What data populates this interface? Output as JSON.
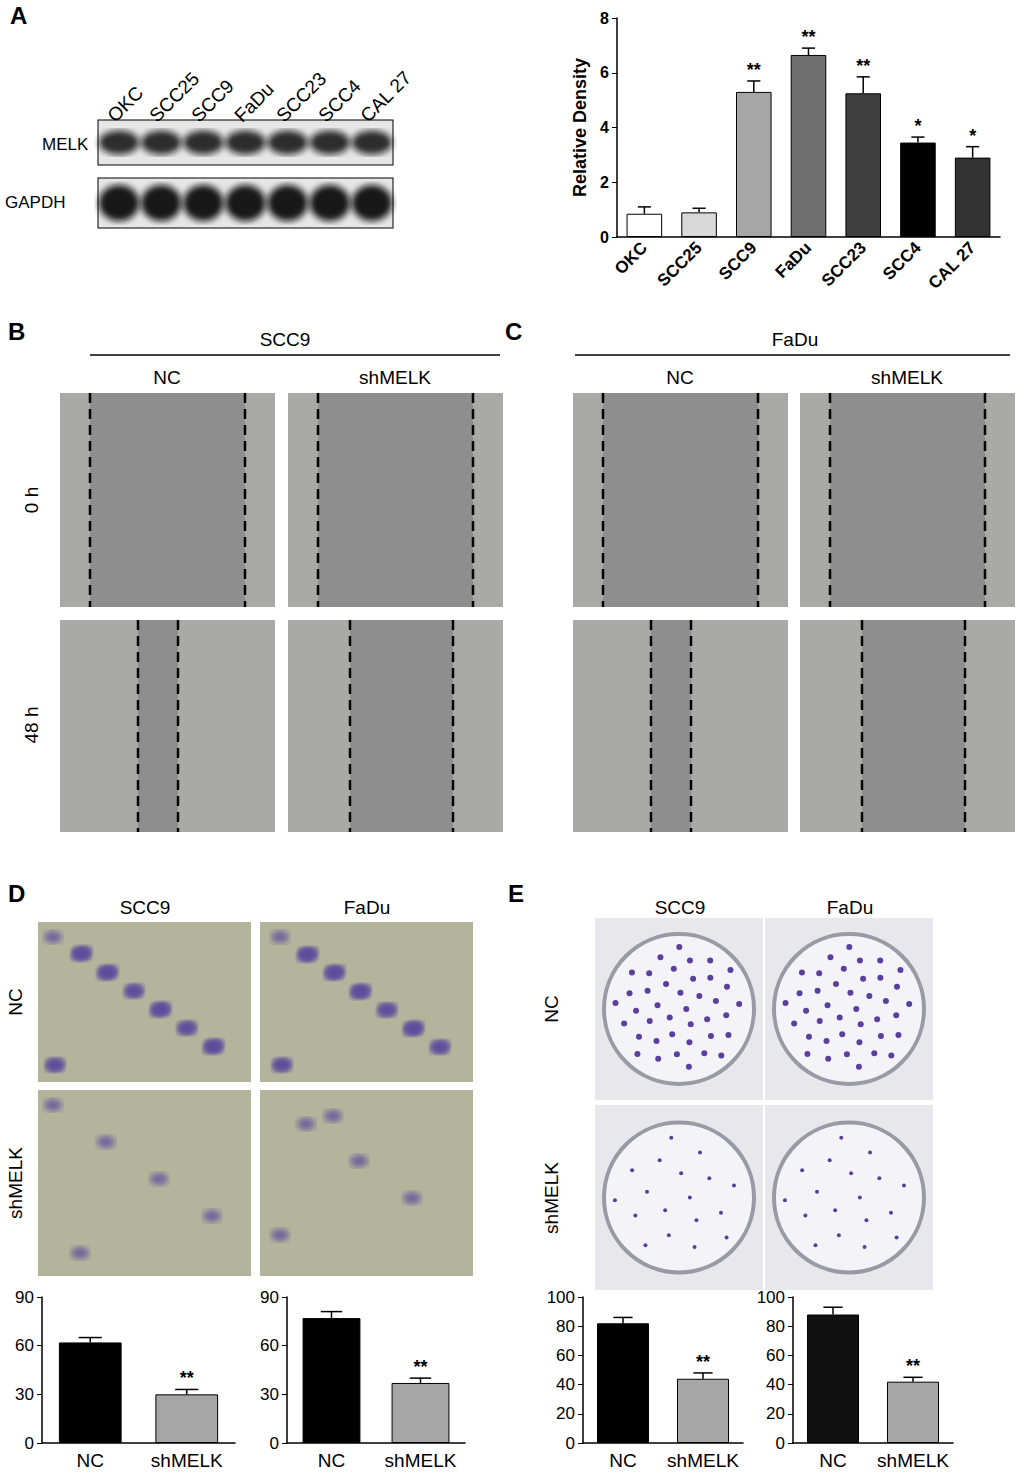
{
  "panels": {
    "A": {
      "letter": "A",
      "blot": {
        "columns": [
          "OKC",
          "SCC25",
          "SCC9",
          "FaDu",
          "SCC23",
          "SCC4",
          "CAL 27"
        ],
        "rows": [
          "MELK",
          "GAPDH"
        ]
      }
    },
    "B": {
      "letter": "B",
      "title": "SCC9",
      "columns": [
        "NC",
        "shMELK"
      ],
      "rows": [
        "0 h",
        "48 h"
      ]
    },
    "C": {
      "letter": "C",
      "title": "FaDu",
      "columns": [
        "NC",
        "shMELK"
      ],
      "rows": [
        "0 h",
        "48 h"
      ]
    },
    "D": {
      "letter": "D",
      "columns": [
        "SCC9",
        "FaDu"
      ],
      "rows": [
        "NC",
        "shMELK"
      ]
    },
    "E": {
      "letter": "E",
      "columns": [
        "SCC9",
        "FaDu"
      ],
      "rows": [
        "NC",
        "shMELK"
      ]
    }
  },
  "chart_data": [
    {
      "type": "bar",
      "ylabel": "Relative Density",
      "categories": [
        "OKC",
        "SCC25",
        "SCC9",
        "FaDu",
        "SCC23",
        "SCC4",
        "CAL 27"
      ],
      "values": [
        0.85,
        0.9,
        5.3,
        6.65,
        5.25,
        3.45,
        2.9
      ],
      "errors": [
        0.25,
        0.15,
        0.4,
        0.25,
        0.6,
        0.2,
        0.4
      ],
      "annotations": [
        null,
        null,
        "**",
        "**",
        "**",
        "*",
        "*"
      ],
      "colors": [
        "#ffffff",
        "#d9d9d9",
        "#a6a6a6",
        "#6e6e6e",
        "#404040",
        "#000000",
        "#333333"
      ],
      "ylim": [
        0,
        8
      ],
      "yticks": [
        0,
        2,
        4,
        6,
        8
      ],
      "grid": false
    },
    {
      "type": "bar",
      "categories": [
        "NC",
        "shMELK"
      ],
      "values": [
        62,
        30
      ],
      "errors": [
        3,
        3
      ],
      "annotations": [
        null,
        "**"
      ],
      "colors": [
        "#000000",
        "#a6a6a6"
      ],
      "ylim": [
        0,
        90
      ],
      "yticks": [
        0,
        30,
        60,
        90
      ],
      "grid": false
    },
    {
      "type": "bar",
      "categories": [
        "NC",
        "shMELK"
      ],
      "values": [
        77,
        37
      ],
      "errors": [
        4,
        3
      ],
      "annotations": [
        null,
        "**"
      ],
      "colors": [
        "#000000",
        "#a6a6a6"
      ],
      "ylim": [
        0,
        90
      ],
      "yticks": [
        0,
        30,
        60,
        90
      ],
      "grid": false
    },
    {
      "type": "bar",
      "categories": [
        "NC",
        "shMELK"
      ],
      "values": [
        82,
        44
      ],
      "errors": [
        4,
        4
      ],
      "annotations": [
        null,
        "**"
      ],
      "colors": [
        "#000000",
        "#a6a6a6"
      ],
      "ylim": [
        0,
        100
      ],
      "yticks": [
        0,
        20,
        40,
        60,
        80,
        100
      ],
      "grid": false
    },
    {
      "type": "bar",
      "categories": [
        "NC",
        "shMELK"
      ],
      "values": [
        88,
        42
      ],
      "errors": [
        5,
        3
      ],
      "annotations": [
        null,
        "**"
      ],
      "colors": [
        "#111111",
        "#a6a6a6"
      ],
      "ylim": [
        0,
        100
      ],
      "yticks": [
        0,
        20,
        40,
        60,
        80,
        100
      ],
      "grid": false
    }
  ]
}
